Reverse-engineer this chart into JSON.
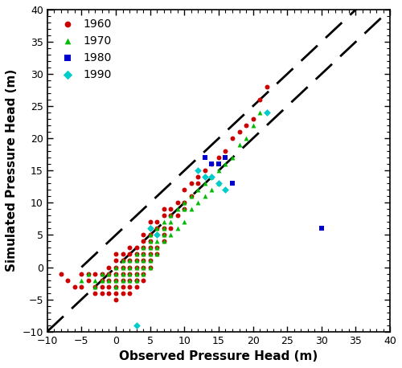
{
  "title": "",
  "xlabel": "Observed Pressure Head (m)",
  "ylabel": "Simulated Pressure Head (m)",
  "xlim": [
    -10,
    40
  ],
  "ylim": [
    -10,
    40
  ],
  "xticks": [
    -10,
    -5,
    0,
    5,
    10,
    15,
    20,
    25,
    30,
    35,
    40
  ],
  "yticks": [
    -10,
    -5,
    0,
    5,
    10,
    15,
    20,
    25,
    30,
    35,
    40
  ],
  "line1": {
    "x": [
      -10,
      40
    ],
    "y": [
      -10,
      40
    ]
  },
  "line2": {
    "x": [
      -5,
      40
    ],
    "y": [
      0,
      45
    ]
  },
  "series": [
    {
      "label": "1960",
      "color": "#cc0000",
      "marker": "o",
      "size": 18,
      "x": [
        -8,
        -7,
        -6,
        -5,
        -5,
        -4,
        -4,
        -3,
        -3,
        -3,
        -2,
        -2,
        -2,
        -2,
        -1,
        -1,
        -1,
        -1,
        -1,
        0,
        0,
        0,
        0,
        0,
        0,
        0,
        0,
        1,
        1,
        1,
        1,
        1,
        1,
        1,
        2,
        2,
        2,
        2,
        2,
        2,
        2,
        2,
        3,
        3,
        3,
        3,
        3,
        3,
        3,
        3,
        4,
        4,
        4,
        4,
        4,
        4,
        4,
        4,
        5,
        5,
        5,
        5,
        5,
        5,
        5,
        5,
        6,
        6,
        6,
        6,
        6,
        7,
        7,
        7,
        7,
        7,
        8,
        8,
        8,
        9,
        9,
        10,
        10,
        10,
        11,
        11,
        12,
        12,
        13,
        14,
        15,
        16,
        17,
        18,
        19,
        20,
        21,
        22
      ],
      "y": [
        -1,
        -2,
        -3,
        -3,
        -1,
        -2,
        -1,
        -4,
        -3,
        -1,
        -4,
        -3,
        -2,
        -1,
        -4,
        -3,
        -2,
        -1,
        0,
        -5,
        -4,
        -3,
        -2,
        -1,
        0,
        1,
        2,
        -4,
        -3,
        -2,
        -1,
        0,
        1,
        2,
        -4,
        -3,
        -2,
        -1,
        0,
        1,
        2,
        3,
        -3,
        -2,
        -2,
        -1,
        0,
        1,
        2,
        3,
        -2,
        -1,
        0,
        1,
        2,
        3,
        4,
        5,
        0,
        1,
        2,
        3,
        4,
        5,
        6,
        7,
        2,
        3,
        5,
        6,
        7,
        4,
        5,
        6,
        8,
        9,
        6,
        8,
        9,
        8,
        10,
        9,
        10,
        12,
        11,
        13,
        13,
        14,
        15,
        16,
        17,
        18,
        20,
        21,
        22,
        23,
        26,
        28
      ]
    },
    {
      "label": "1970",
      "color": "#00bb00",
      "marker": "^",
      "size": 18,
      "x": [
        -5,
        -4,
        -3,
        -3,
        -2,
        -2,
        -1,
        -1,
        0,
        0,
        0,
        0,
        1,
        1,
        1,
        1,
        2,
        2,
        2,
        2,
        3,
        3,
        3,
        3,
        3,
        4,
        4,
        4,
        4,
        4,
        5,
        5,
        5,
        5,
        5,
        5,
        6,
        6,
        6,
        6,
        7,
        7,
        7,
        7,
        8,
        8,
        8,
        9,
        9,
        10,
        10,
        10,
        11,
        11,
        12,
        12,
        13,
        13,
        14,
        14,
        15,
        15,
        16,
        17,
        18,
        19,
        20,
        21
      ],
      "y": [
        -2,
        -1,
        -3,
        -2,
        -2,
        -1,
        -2,
        -1,
        -3,
        -2,
        -1,
        0,
        -2,
        -1,
        0,
        1,
        -2,
        -1,
        0,
        1,
        -2,
        -1,
        0,
        1,
        2,
        -1,
        0,
        1,
        2,
        3,
        0,
        1,
        2,
        3,
        4,
        5,
        2,
        3,
        4,
        6,
        4,
        5,
        6,
        7,
        5,
        7,
        8,
        6,
        9,
        7,
        9,
        10,
        9,
        11,
        10,
        12,
        11,
        13,
        12,
        14,
        13,
        15,
        16,
        17,
        19,
        20,
        22,
        24
      ]
    },
    {
      "label": "1980",
      "color": "#0000cc",
      "marker": "s",
      "size": 22,
      "x": [
        13,
        14,
        15,
        16,
        17,
        30
      ],
      "y": [
        17,
        16,
        16,
        17,
        13,
        6
      ]
    },
    {
      "label": "1990",
      "color": "#00cccc",
      "marker": "D",
      "size": 20,
      "x": [
        3,
        5,
        6,
        12,
        13,
        14,
        15,
        16,
        22
      ],
      "y": [
        -9,
        6,
        5,
        15,
        14,
        14,
        13,
        12,
        24
      ]
    }
  ]
}
